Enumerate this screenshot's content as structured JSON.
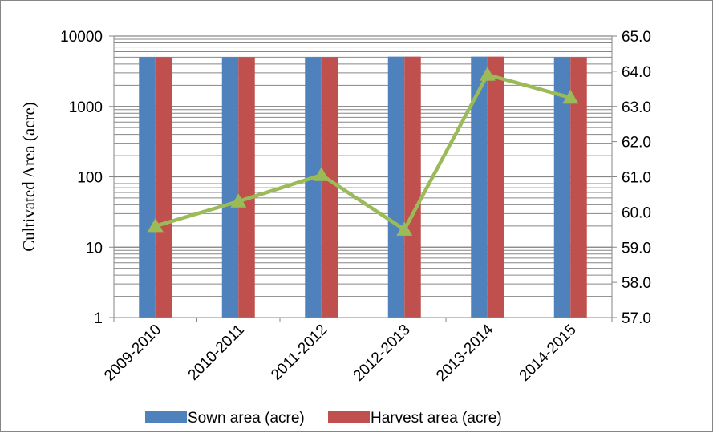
{
  "chart_data": {
    "type": "bar",
    "title": "",
    "xlabel": "",
    "ylabel": "Cultivated Area (acre)",
    "y2label": "",
    "yscale": "log",
    "ylim": [
      1,
      10000
    ],
    "y2lim": [
      57.0,
      65.0
    ],
    "grid": true,
    "legend_position": "bottom",
    "categories": [
      "2009-2010",
      "2010-2011",
      "2011-2012",
      "2012-2013",
      "2013-2014",
      "2014-2015"
    ],
    "y_ticks": [
      "1",
      "10",
      "100",
      "1000",
      "10000"
    ],
    "y2_ticks": [
      "57.0",
      "58.0",
      "59.0",
      "60.0",
      "61.0",
      "62.0",
      "63.0",
      "64.0",
      "65.0"
    ],
    "series": [
      {
        "name": "Sown area (acre)",
        "type": "bar",
        "axis": "left",
        "color": "#4F81BD",
        "values": [
          5000,
          5000,
          5000,
          5100,
          5100,
          5000
        ]
      },
      {
        "name": "Harvest area (acre)",
        "type": "bar",
        "axis": "left",
        "color": "#C0504D",
        "values": [
          5000,
          5000,
          5000,
          5100,
          5100,
          5000
        ]
      },
      {
        "type": "line",
        "axis": "right",
        "color": "#9BBB59",
        "marker": "triangle",
        "values": [
          59.6,
          60.3,
          61.05,
          59.5,
          63.9,
          63.25
        ]
      }
    ]
  }
}
